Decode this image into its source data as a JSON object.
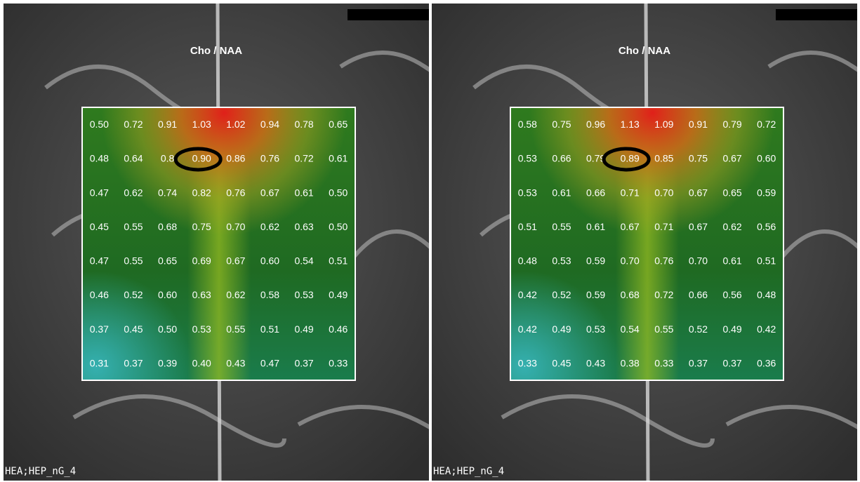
{
  "panels": [
    {
      "title": "Cho / NAA",
      "footer": "HEA;HEP_nG_4",
      "grid": [
        [
          "0.50",
          "0.72",
          "0.91",
          "1.03",
          "1.02",
          "0.94",
          "0.78",
          "0.65"
        ],
        [
          "0.48",
          "0.64",
          "0.8",
          "0.90",
          "0.86",
          "0.76",
          "0.72",
          "0.61"
        ],
        [
          "0.47",
          "0.62",
          "0.74",
          "0.82",
          "0.76",
          "0.67",
          "0.61",
          "0.50"
        ],
        [
          "0.45",
          "0.55",
          "0.68",
          "0.75",
          "0.70",
          "0.62",
          "0.63",
          "0.50"
        ],
        [
          "0.47",
          "0.55",
          "0.65",
          "0.69",
          "0.67",
          "0.60",
          "0.54",
          "0.51"
        ],
        [
          "0.46",
          "0.52",
          "0.60",
          "0.63",
          "0.62",
          "0.58",
          "0.53",
          "0.49"
        ],
        [
          "0.37",
          "0.45",
          "0.50",
          "0.53",
          "0.55",
          "0.51",
          "0.49",
          "0.46"
        ],
        [
          "0.31",
          "0.37",
          "0.39",
          "0.40",
          "0.43",
          "0.47",
          "0.37",
          "0.33"
        ]
      ]
    },
    {
      "title": "Cho / NAA",
      "footer": "HEA;HEP_nG_4",
      "grid": [
        [
          "0.58",
          "0.75",
          "0.96",
          "1.13",
          "1.09",
          "0.91",
          "0.79",
          "0.72"
        ],
        [
          "0.53",
          "0.66",
          "0.79",
          "0.89",
          "0.85",
          "0.75",
          "0.67",
          "0.60"
        ],
        [
          "0.53",
          "0.61",
          "0.66",
          "0.71",
          "0.70",
          "0.67",
          "0.65",
          "0.59"
        ],
        [
          "0.51",
          "0.55",
          "0.61",
          "0.67",
          "0.71",
          "0.67",
          "0.62",
          "0.56"
        ],
        [
          "0.48",
          "0.53",
          "0.59",
          "0.70",
          "0.76",
          "0.70",
          "0.61",
          "0.51"
        ],
        [
          "0.42",
          "0.52",
          "0.59",
          "0.68",
          "0.72",
          "0.66",
          "0.56",
          "0.48"
        ],
        [
          "0.42",
          "0.49",
          "0.53",
          "0.54",
          "0.55",
          "0.52",
          "0.49",
          "0.42"
        ],
        [
          "0.33",
          "0.45",
          "0.43",
          "0.38",
          "0.33",
          "0.37",
          "0.37",
          "0.36"
        ]
      ]
    }
  ]
}
